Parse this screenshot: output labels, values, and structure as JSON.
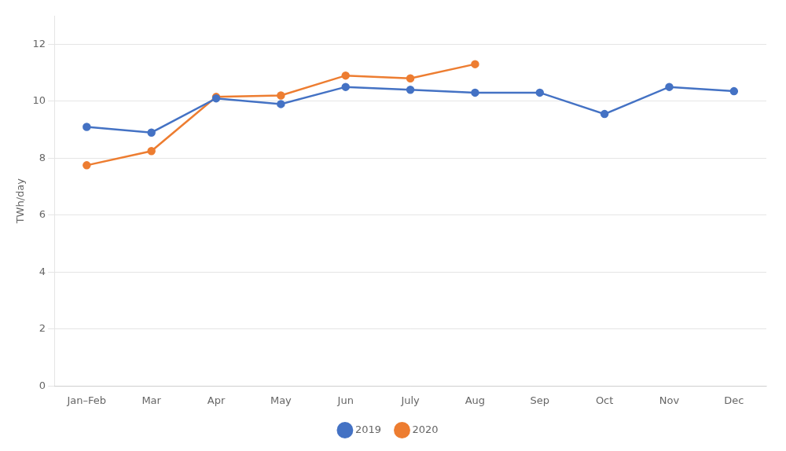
{
  "chart_data": {
    "type": "line",
    "categories": [
      "Jan–Feb",
      "Mar",
      "Apr",
      "May",
      "Jun",
      "July",
      "Aug",
      "Sep",
      "Oct",
      "Nov",
      "Dec"
    ],
    "series": [
      {
        "name": "2019",
        "color": "#4472C4",
        "marker": "circle",
        "values": [
          9.1,
          8.9,
          10.1,
          9.9,
          10.5,
          10.4,
          10.3,
          10.3,
          9.55,
          10.5,
          10.35
        ]
      },
      {
        "name": "2020",
        "color": "#ED7D31",
        "marker": "circle",
        "values": [
          7.75,
          8.25,
          10.15,
          10.2,
          10.9,
          10.8,
          11.3,
          null,
          null,
          null,
          null
        ]
      }
    ],
    "ylabel": "TWh/day",
    "ylim": [
      0,
      13
    ],
    "yticks": [
      0,
      2,
      4,
      6,
      8,
      10,
      12
    ],
    "grid": true,
    "legend": "bottom"
  }
}
